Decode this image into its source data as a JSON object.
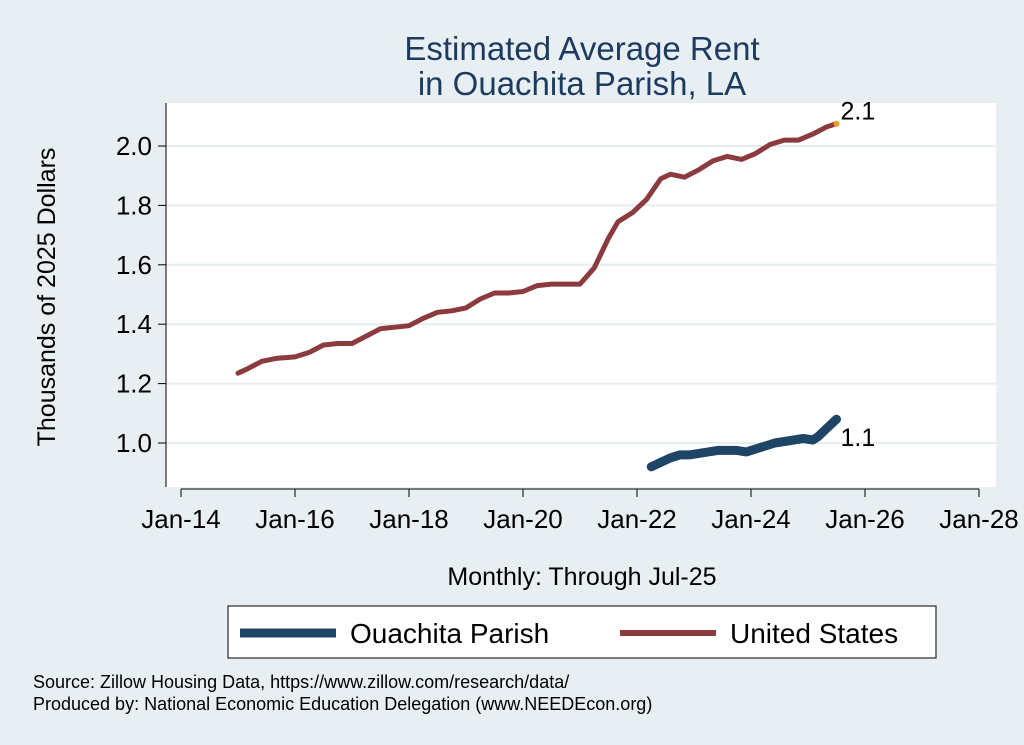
{
  "chart_data": {
    "type": "line",
    "title": [
      "Estimated Average Rent",
      "in Ouachita Parish, LA"
    ],
    "xlabel": "Monthly: Through Jul-25",
    "ylabel": "Thousands of 2025 Dollars",
    "x_ticks": [
      "Jan-14",
      "Jan-16",
      "Jan-18",
      "Jan-20",
      "Jan-22",
      "Jan-24",
      "Jan-26",
      "Jan-28"
    ],
    "xlim": [
      "2014-01",
      "2028-01"
    ],
    "y_ticks": [
      "1.0",
      "1.2",
      "1.4",
      "1.6",
      "1.8",
      "2.0"
    ],
    "ylim": [
      0.86,
      2.13
    ],
    "grid": "horizontal",
    "legend_placement": "bottom",
    "series": [
      {
        "name": "Ouachita Parish",
        "color": "#1e4466",
        "end_label": "1.1",
        "points": [
          [
            "2022-04",
            0.92
          ],
          [
            "2022-06",
            0.935
          ],
          [
            "2022-08",
            0.95
          ],
          [
            "2022-10",
            0.96
          ],
          [
            "2022-12",
            0.96
          ],
          [
            "2023-02",
            0.965
          ],
          [
            "2023-04",
            0.97
          ],
          [
            "2023-06",
            0.975
          ],
          [
            "2023-08",
            0.975
          ],
          [
            "2023-10",
            0.975
          ],
          [
            "2023-12",
            0.97
          ],
          [
            "2024-02",
            0.98
          ],
          [
            "2024-04",
            0.99
          ],
          [
            "2024-06",
            1.0
          ],
          [
            "2024-08",
            1.005
          ],
          [
            "2024-10",
            1.01
          ],
          [
            "2024-12",
            1.015
          ],
          [
            "2025-02",
            1.01
          ],
          [
            "2025-03",
            1.02
          ],
          [
            "2025-05",
            1.05
          ],
          [
            "2025-07",
            1.08
          ]
        ]
      },
      {
        "name": "United States",
        "color": "#8b3a3e",
        "end_label": "2.1",
        "points": [
          [
            "2015-01",
            1.235
          ],
          [
            "2015-03",
            1.25
          ],
          [
            "2015-06",
            1.275
          ],
          [
            "2015-09",
            1.285
          ],
          [
            "2016-01",
            1.29
          ],
          [
            "2016-04",
            1.305
          ],
          [
            "2016-07",
            1.33
          ],
          [
            "2016-10",
            1.335
          ],
          [
            "2017-01",
            1.335
          ],
          [
            "2017-04",
            1.36
          ],
          [
            "2017-07",
            1.385
          ],
          [
            "2017-10",
            1.39
          ],
          [
            "2018-01",
            1.395
          ],
          [
            "2018-04",
            1.42
          ],
          [
            "2018-07",
            1.44
          ],
          [
            "2018-10",
            1.445
          ],
          [
            "2019-01",
            1.455
          ],
          [
            "2019-04",
            1.485
          ],
          [
            "2019-07",
            1.505
          ],
          [
            "2019-10",
            1.505
          ],
          [
            "2020-01",
            1.51
          ],
          [
            "2020-04",
            1.53
          ],
          [
            "2020-07",
            1.535
          ],
          [
            "2020-10",
            1.535
          ],
          [
            "2021-01",
            1.535
          ],
          [
            "2021-04",
            1.59
          ],
          [
            "2021-07",
            1.69
          ],
          [
            "2021-09",
            1.745
          ],
          [
            "2021-12",
            1.775
          ],
          [
            "2022-03",
            1.82
          ],
          [
            "2022-06",
            1.89
          ],
          [
            "2022-08",
            1.905
          ],
          [
            "2022-11",
            1.895
          ],
          [
            "2023-02",
            1.92
          ],
          [
            "2023-05",
            1.95
          ],
          [
            "2023-08",
            1.965
          ],
          [
            "2023-11",
            1.955
          ],
          [
            "2024-02",
            1.975
          ],
          [
            "2024-05",
            2.005
          ],
          [
            "2024-08",
            2.02
          ],
          [
            "2024-11",
            2.02
          ],
          [
            "2025-02",
            2.04
          ],
          [
            "2025-05",
            2.065
          ],
          [
            "2025-07",
            2.075
          ]
        ]
      }
    ]
  },
  "footer": {
    "source": "Source: Zillow Housing Data, https://www.zillow.com/research/data/",
    "produced_by": "Produced by: National Economic Education Delegation (www.NEEDEcon.org)"
  }
}
